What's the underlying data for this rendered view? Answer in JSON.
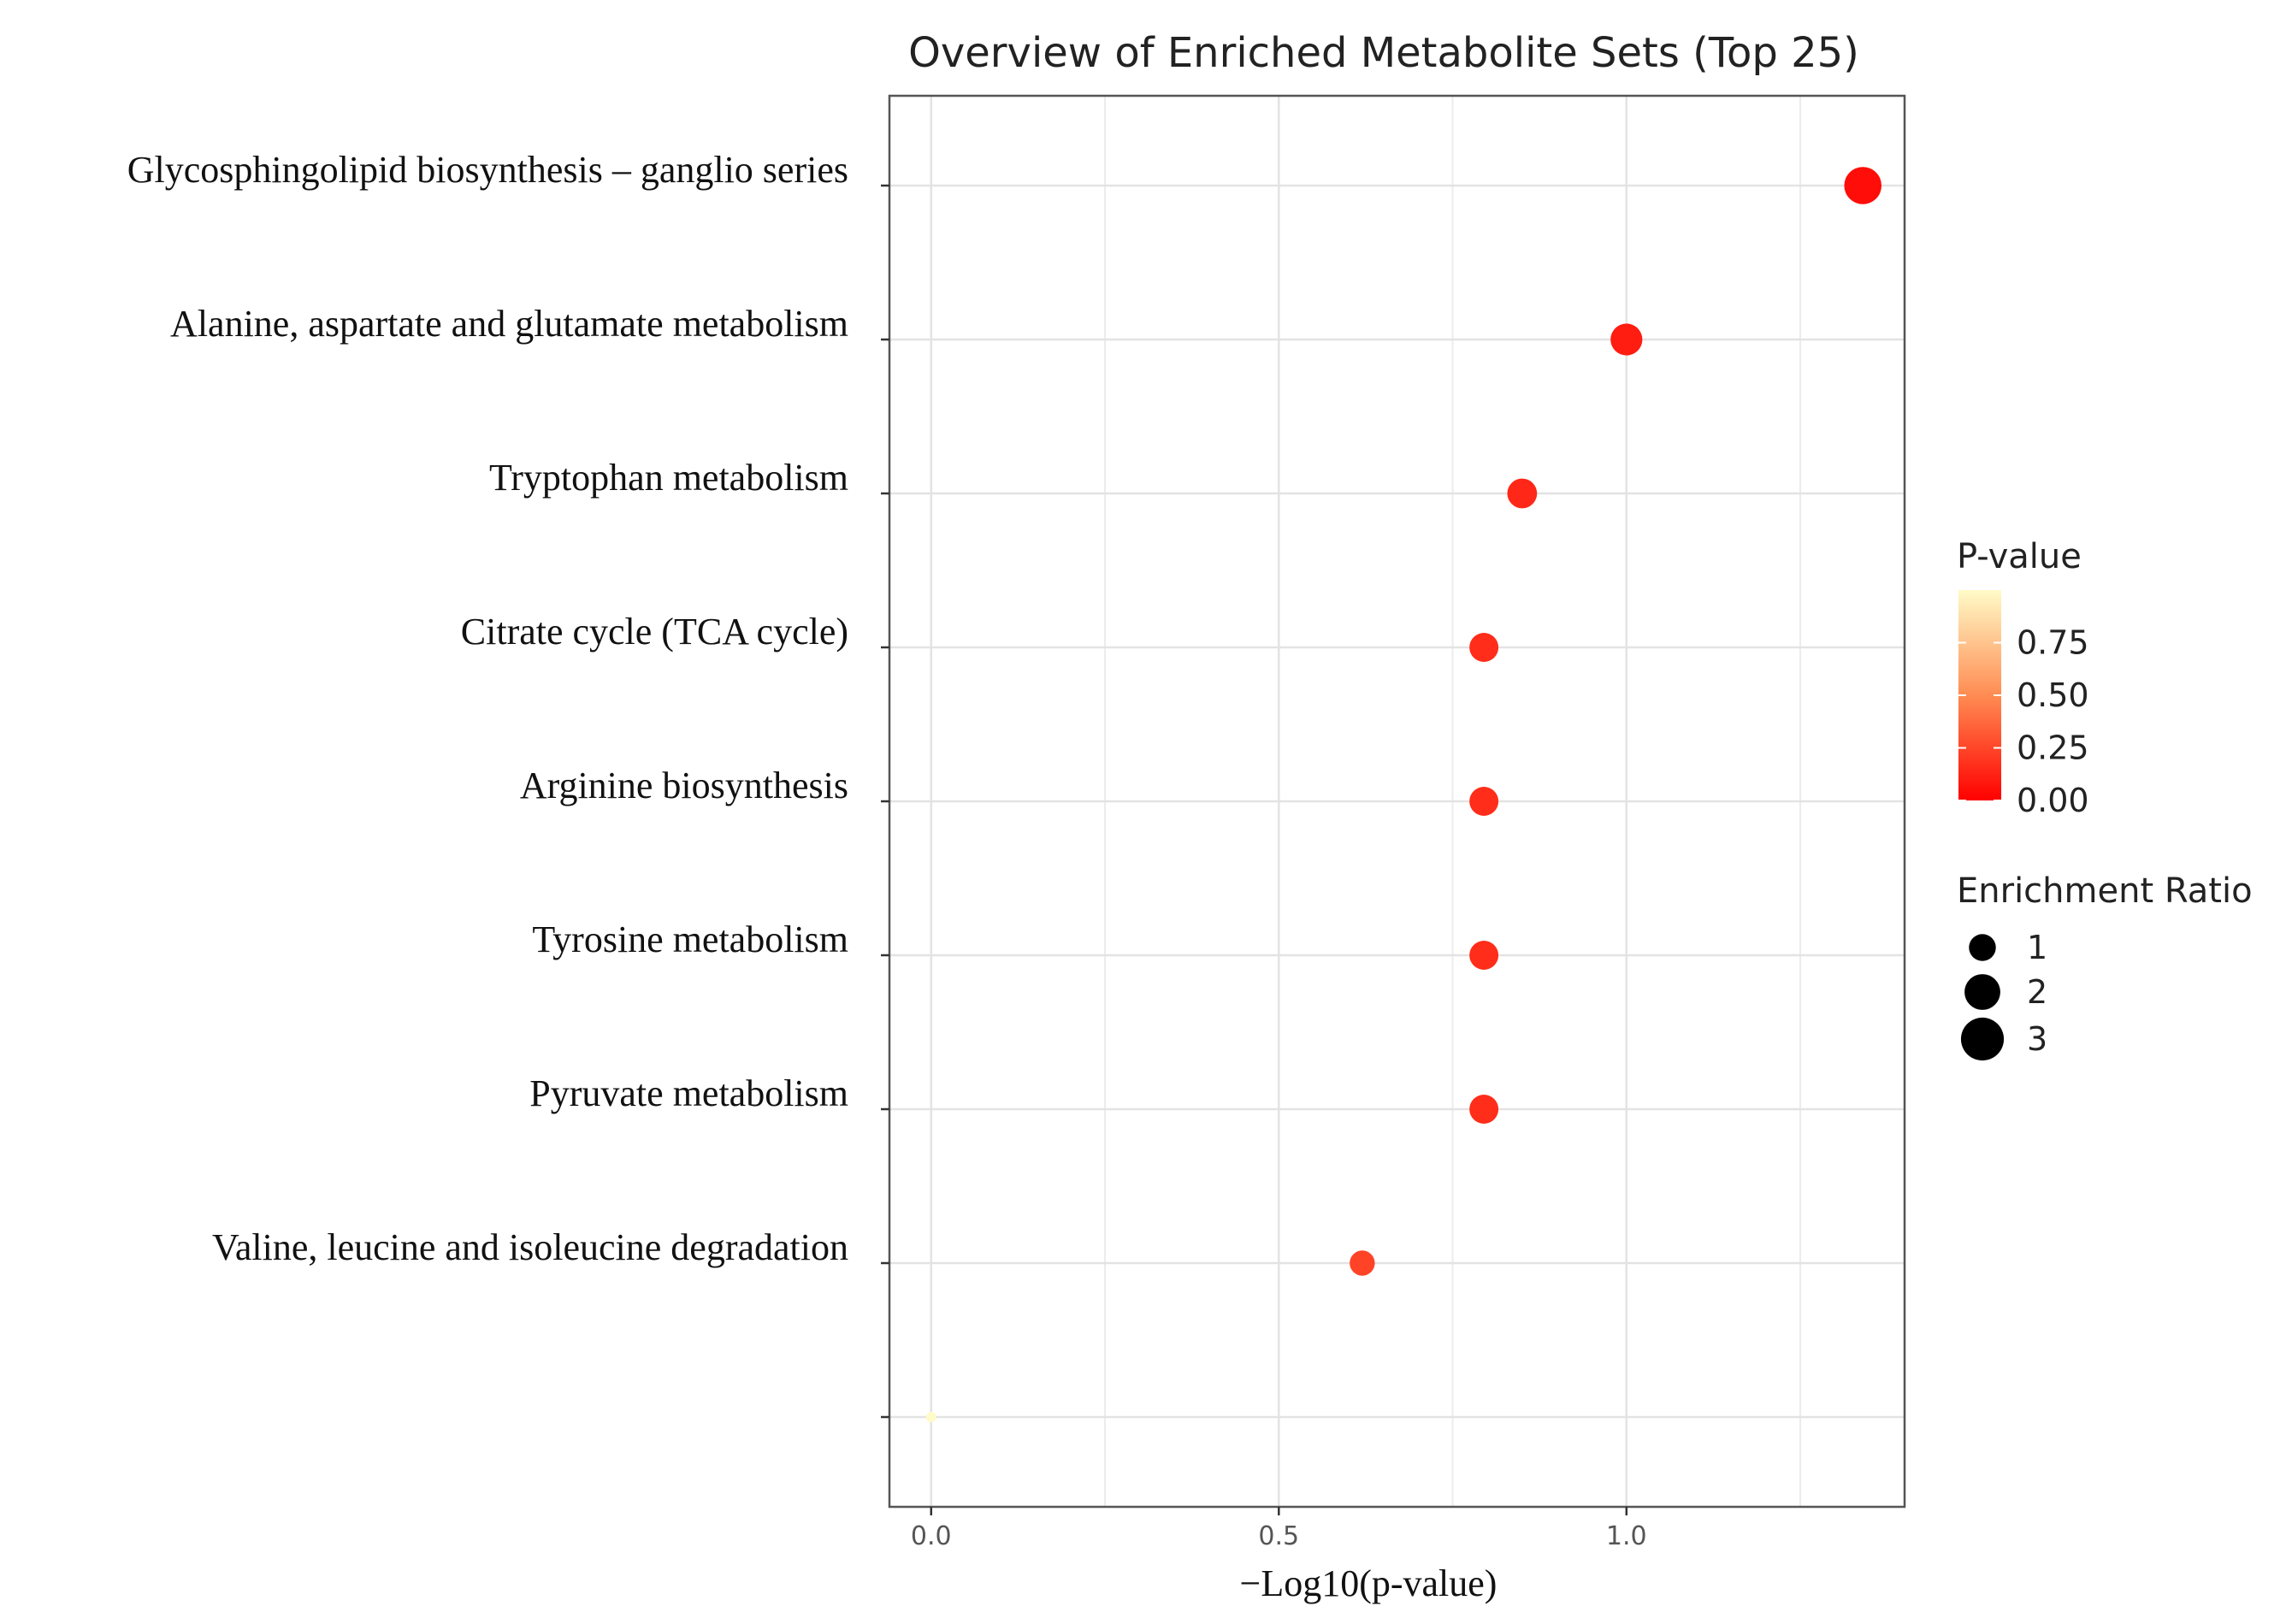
{
  "chart_data": {
    "type": "scatter",
    "title": "Overview of Enriched Metabolite Sets (Top 25)",
    "xlabel": "−Log10(p-value)",
    "ylabel": "",
    "xlim": [
      -0.06,
      1.4
    ],
    "x_ticks": [
      0.0,
      0.5,
      1.0
    ],
    "x_tick_labels": [
      "0.0",
      "0.5",
      "1.0"
    ],
    "grid": true,
    "categories": [
      "Glycosphingolipid biosynthesis – ganglio series",
      "Alanine, aspartate and glutamate metabolism",
      "Tryptophan metabolism",
      "Citrate cycle (TCA cycle)",
      "Arginine biosynthesis",
      "Tyrosine metabolism",
      "Pyruvate metabolism",
      "Valine, leucine and isoleucine degradation",
      ""
    ],
    "points": [
      {
        "label": "Glycosphingolipid biosynthesis – ganglio series",
        "x": 1.34,
        "p_value": 0.046,
        "enrichment_ratio": 3.3
      },
      {
        "label": "Alanine, aspartate and glutamate metabolism",
        "x": 1.0,
        "p_value": 0.1,
        "enrichment_ratio": 2.4
      },
      {
        "label": "Tryptophan metabolism",
        "x": 0.85,
        "p_value": 0.14,
        "enrichment_ratio": 2.1
      },
      {
        "label": "Citrate cycle (TCA cycle)",
        "x": 0.795,
        "p_value": 0.16,
        "enrichment_ratio": 2.0
      },
      {
        "label": "Arginine biosynthesis",
        "x": 0.795,
        "p_value": 0.16,
        "enrichment_ratio": 2.0
      },
      {
        "label": "Tyrosine metabolism",
        "x": 0.795,
        "p_value": 0.16,
        "enrichment_ratio": 2.0
      },
      {
        "label": "Pyruvate metabolism",
        "x": 0.795,
        "p_value": 0.16,
        "enrichment_ratio": 2.0
      },
      {
        "label": "Valine, leucine and isoleucine degradation",
        "x": 0.62,
        "p_value": 0.24,
        "enrichment_ratio": 1.5
      },
      {
        "label": "",
        "x": 0.0,
        "p_value": 1.0,
        "enrichment_ratio": 0.0
      }
    ],
    "legend": {
      "color_title": "P-value",
      "color_ticks": [
        0.75,
        0.5,
        0.25,
        0.0
      ],
      "color_tick_labels": [
        "0.75",
        "0.50",
        "0.25",
        "0.00"
      ],
      "color_low": "#ff0000",
      "color_mid": "#ff8c52",
      "color_high": "#fffbc8",
      "size_title": "Enrichment Ratio",
      "size_values": [
        1,
        2,
        3
      ],
      "size_labels": [
        "1",
        "2",
        "3"
      ],
      "placement": "right"
    }
  }
}
